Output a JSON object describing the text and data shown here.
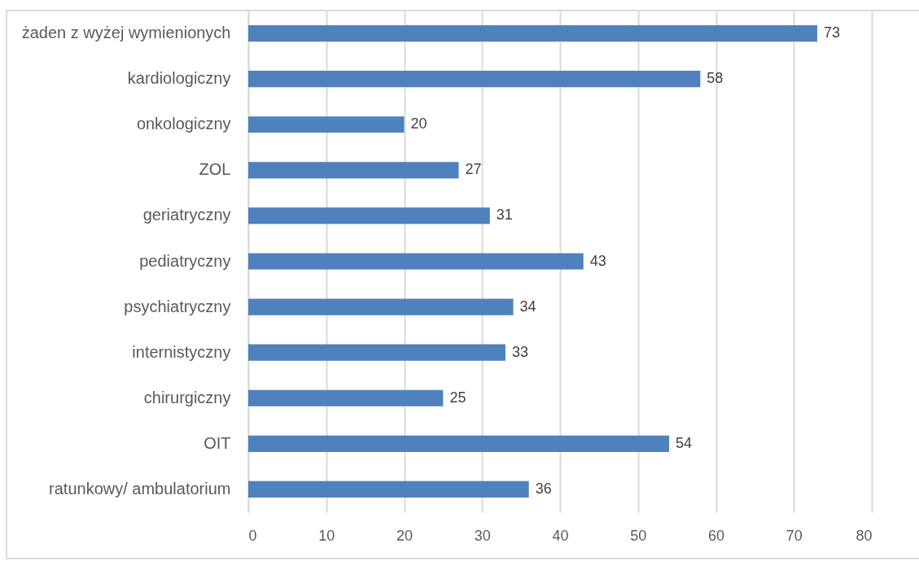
{
  "chart_data": {
    "type": "bar",
    "orientation": "horizontal",
    "categories": [
      "żaden z wyżej wymienionych",
      "kardiologiczny",
      "onkologiczny",
      "ZOL",
      "geriatryczny",
      "pediatryczny",
      "psychiatryczny",
      "internistyczny",
      "chirurgiczny",
      "OIT",
      "ratunkowy/ ambulatorium"
    ],
    "values": [
      73,
      58,
      20,
      27,
      31,
      43,
      34,
      33,
      25,
      54,
      36
    ],
    "color": "#4f81bd",
    "xlim": [
      0,
      80
    ],
    "xticks": [
      0,
      10,
      20,
      30,
      40,
      50,
      60,
      70,
      80
    ],
    "grid": "x",
    "data_labels": true
  }
}
